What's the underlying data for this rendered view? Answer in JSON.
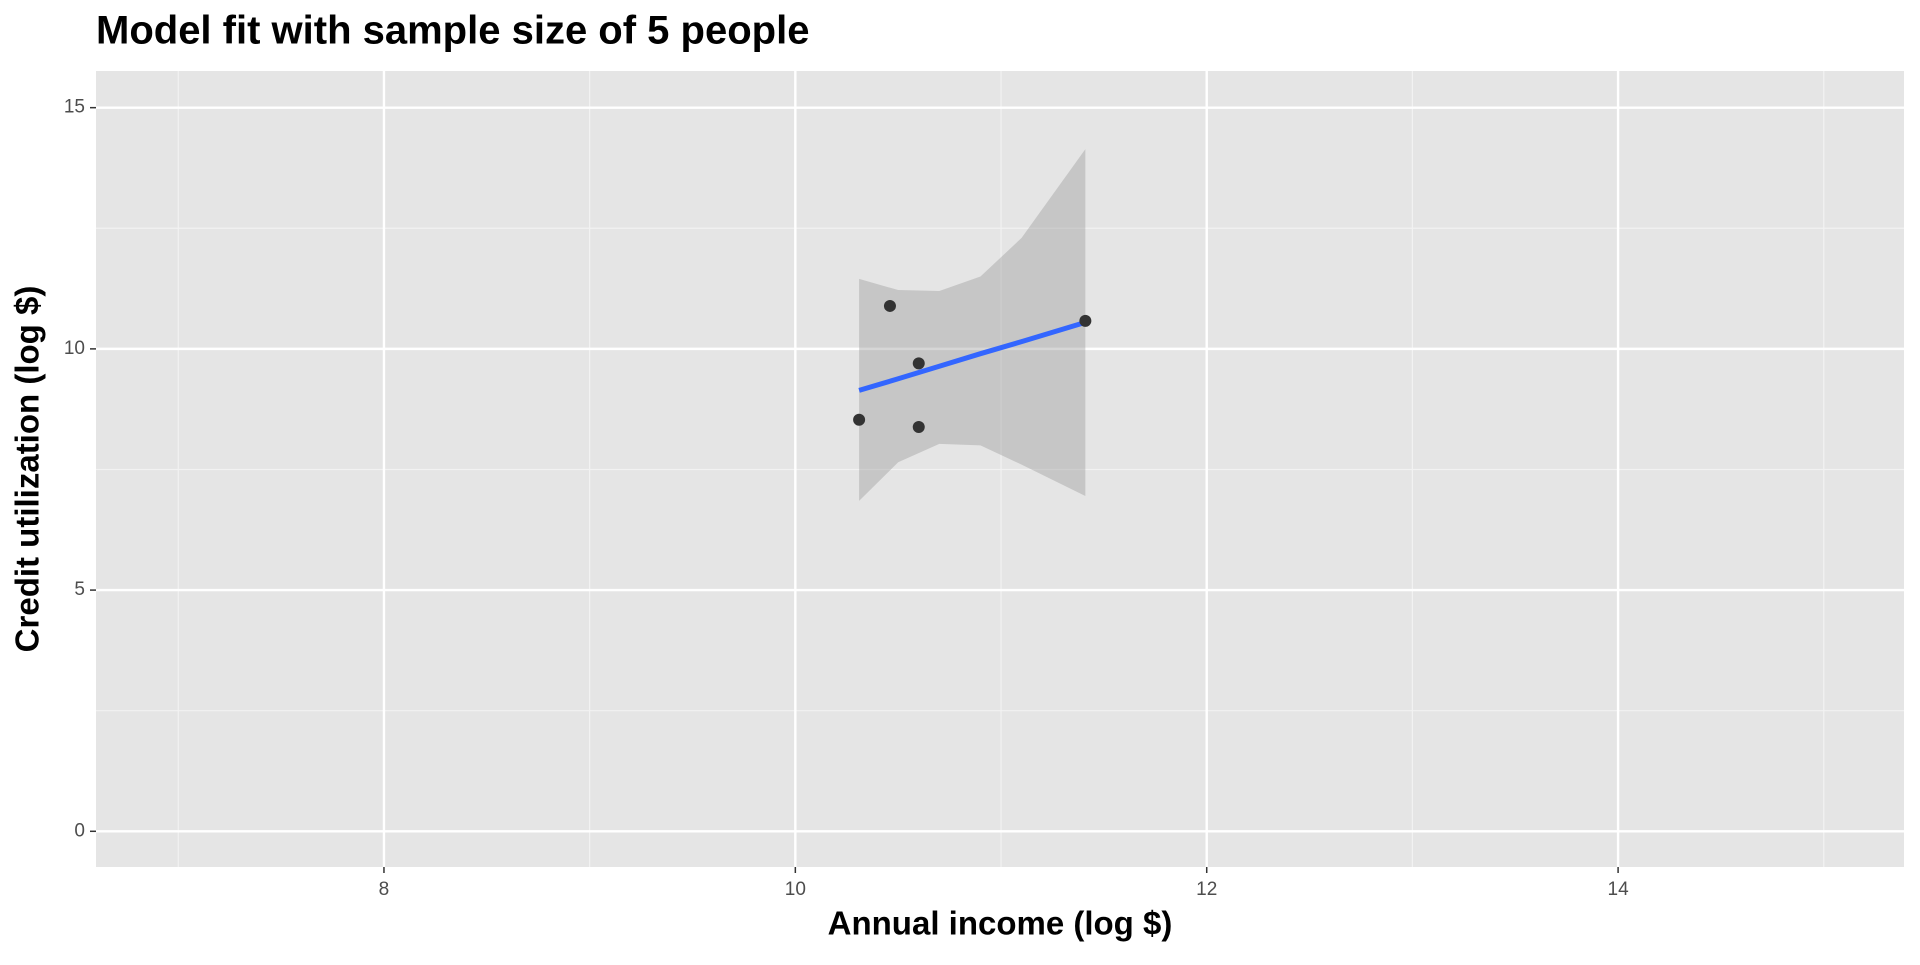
{
  "chart_data": {
    "type": "scatter",
    "title": "Model fit with sample size of 5 people",
    "x_label": "Annual income (log $)",
    "y_label": "Credit utilization (log $)",
    "x": [
      10.31,
      10.46,
      10.6,
      10.6,
      11.41
    ],
    "values": [
      8.53,
      10.89,
      9.7,
      8.38,
      10.58
    ],
    "color": "#333333",
    "fit": {
      "x": [
        10.31,
        10.5,
        10.7,
        10.9,
        11.1,
        11.41
      ],
      "y": [
        9.14,
        9.38,
        9.64,
        9.9,
        10.15,
        10.55
      ],
      "upper": [
        11.45,
        11.22,
        11.2,
        11.5,
        12.3,
        14.14
      ],
      "lower": [
        6.85,
        7.65,
        8.03,
        8.0,
        7.6,
        6.95
      ],
      "color": "#3366ff",
      "band_color": "#999999"
    },
    "xlim": [
      6.6,
      15.39
    ],
    "ylim": [
      -0.74,
      15.76
    ],
    "xticks": [
      8,
      10,
      12,
      14
    ],
    "yticks": [
      0,
      5,
      10,
      15
    ],
    "minor_xticks": [
      7,
      9,
      11,
      13,
      15
    ],
    "minor_yticks": [
      2.5,
      7.5,
      12.5
    ],
    "grid": true
  }
}
